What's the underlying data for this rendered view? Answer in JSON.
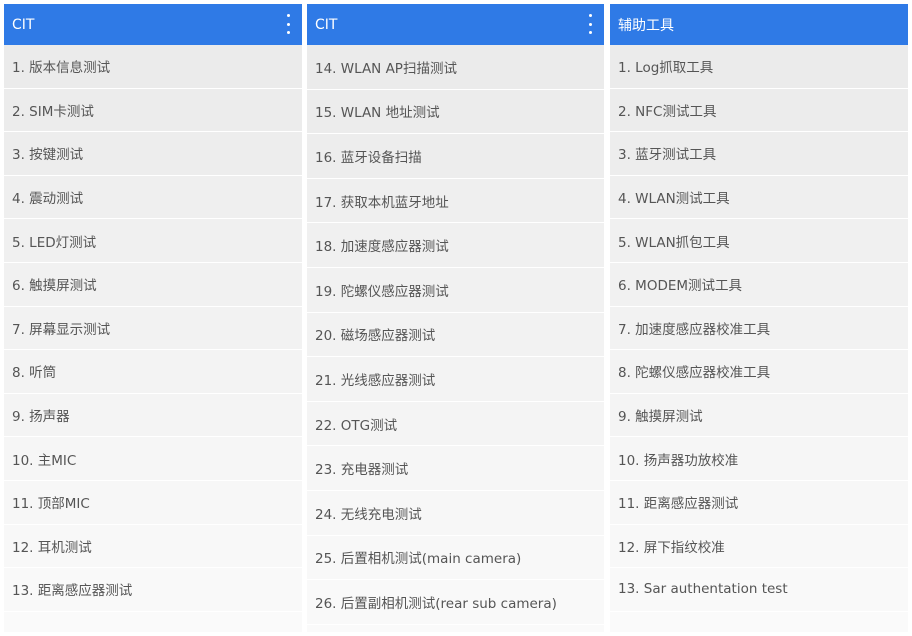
{
  "panels": [
    {
      "title": "CIT",
      "has_menu": true,
      "items": [
        "1. 版本信息测试",
        "2. SIM卡测试",
        "3. 按键测试",
        "4. 震动测试",
        "5. LED灯测试",
        "6. 触摸屏测试",
        "7. 屏幕显示测试",
        "8. 听筒",
        "9. 扬声器",
        "10. 主MIC",
        "11. 顶部MIC",
        "12. 耳机测试",
        "13. 距离感应器测试"
      ]
    },
    {
      "title": "CIT",
      "has_menu": true,
      "items": [
        "14. WLAN AP扫描测试",
        "15. WLAN 地址测试",
        "16. 蓝牙设备扫描",
        "17. 获取本机蓝牙地址",
        "18. 加速度感应器测试",
        "19. 陀螺仪感应器测试",
        "20. 磁场感应器测试",
        "21. 光线感应器测试",
        "22. OTG测试",
        "23. 充电器测试",
        "24. 无线充电测试",
        "25. 后置相机测试(main camera)",
        "26. 后置副相机测试(rear sub camera)"
      ]
    },
    {
      "title": "辅助工具",
      "has_menu": false,
      "items": [
        "1. Log抓取工具",
        "2. NFC测试工具",
        "3. 蓝牙测试工具",
        "4. WLAN测试工具",
        "5. WLAN抓包工具",
        "6. MODEM测试工具",
        "7. 加速度感应器校准工具",
        "8. 陀螺仪感应器校准工具",
        "9. 触摸屏测试",
        "10. 扬声器功放校准",
        "11. 距离感应器测试",
        "12. 屏下指纹校准",
        "13. Sar authentation test"
      ]
    }
  ],
  "colors": {
    "header": "#2f7ae6",
    "row_top": "#ebebeb",
    "row_bottom": "#f9f9f9",
    "text": "#555555"
  }
}
